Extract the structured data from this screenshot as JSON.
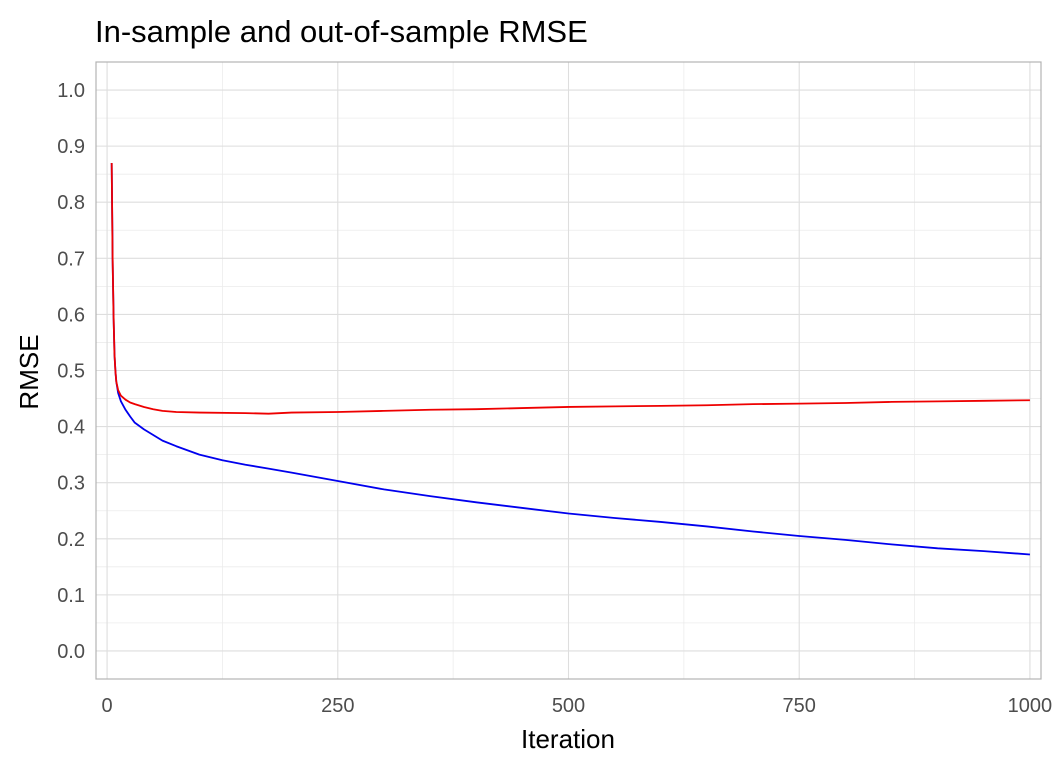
{
  "chart_data": {
    "type": "line",
    "title": "In-sample and out-of-sample RMSE",
    "xlabel": "Iteration",
    "ylabel": "RMSE",
    "xlim": [
      -12,
      1012
    ],
    "ylim": [
      -0.05,
      1.05
    ],
    "x_ticks": [
      0,
      250,
      500,
      750,
      1000
    ],
    "y_ticks": [
      0.0,
      0.1,
      0.2,
      0.3,
      0.4,
      0.5,
      0.6,
      0.7,
      0.8,
      0.9,
      1.0
    ],
    "x_tick_labels": [
      "0",
      "250",
      "500",
      "750",
      "1000"
    ],
    "y_tick_labels": [
      "0.0",
      "0.1",
      "0.2",
      "0.3",
      "0.4",
      "0.5",
      "0.6",
      "0.7",
      "0.8",
      "0.9",
      "1.0"
    ],
    "grid": true,
    "legend": "none",
    "series": [
      {
        "color": "#0000ee",
        "x": [
          5,
          6,
          7,
          8,
          9,
          10,
          12,
          15,
          20,
          25,
          30,
          40,
          50,
          60,
          75,
          100,
          125,
          150,
          175,
          200,
          250,
          300,
          350,
          400,
          450,
          500,
          550,
          600,
          650,
          700,
          750,
          800,
          850,
          900,
          950,
          1000
        ],
        "y": [
          0.87,
          0.7,
          0.6,
          0.53,
          0.5,
          0.48,
          0.46,
          0.445,
          0.43,
          0.418,
          0.407,
          0.395,
          0.385,
          0.375,
          0.365,
          0.35,
          0.34,
          0.332,
          0.325,
          0.318,
          0.303,
          0.288,
          0.276,
          0.265,
          0.255,
          0.245,
          0.237,
          0.23,
          0.222,
          0.213,
          0.205,
          0.198,
          0.19,
          0.183,
          0.178,
          0.172
        ]
      },
      {
        "color": "#ee0000",
        "x": [
          5,
          6,
          7,
          8,
          9,
          10,
          12,
          15,
          20,
          25,
          30,
          40,
          50,
          60,
          75,
          100,
          150,
          175,
          200,
          250,
          300,
          350,
          400,
          450,
          500,
          550,
          600,
          650,
          700,
          750,
          800,
          850,
          900,
          950,
          1000
        ],
        "y": [
          0.87,
          0.7,
          0.6,
          0.53,
          0.5,
          0.48,
          0.465,
          0.455,
          0.448,
          0.443,
          0.44,
          0.435,
          0.431,
          0.428,
          0.426,
          0.425,
          0.424,
          0.423,
          0.425,
          0.426,
          0.428,
          0.43,
          0.431,
          0.433,
          0.435,
          0.436,
          0.437,
          0.438,
          0.44,
          0.441,
          0.442,
          0.444,
          0.445,
          0.446,
          0.447
        ]
      }
    ]
  }
}
